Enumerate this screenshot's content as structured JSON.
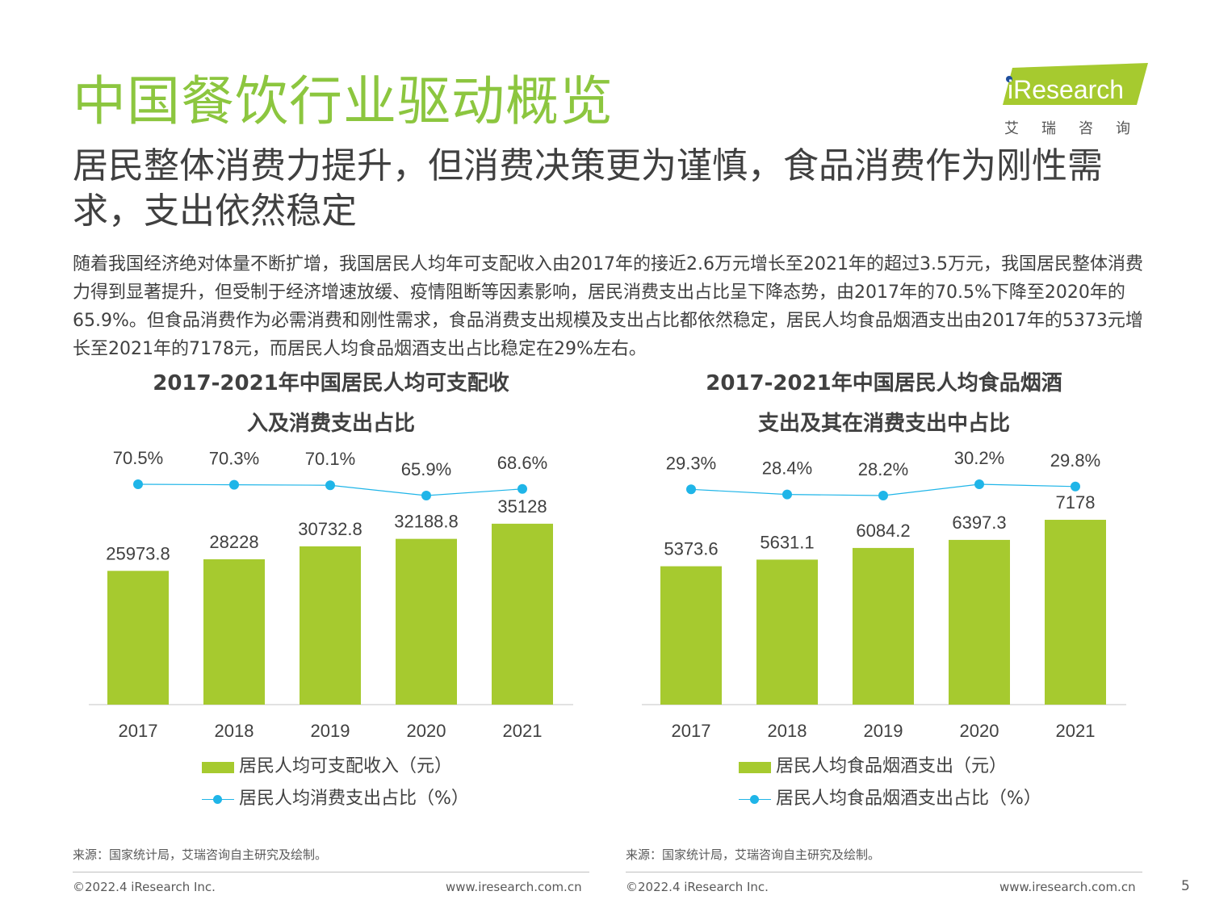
{
  "header": {
    "title": "中国餐饮行业驱动概览",
    "logo_text": "iResearch",
    "logo_subtitle": "艾瑞咨询"
  },
  "subtitle": "居民整体消费力提升，但消费决策更为谨慎，食品消费作为刚性需求，支出依然稳定",
  "intro": "随着我国经济绝对体量不断扩增，我国居民人均年可支配收入由2017年的接近2.6万元增长至2021年的超过3.5万元，我国居民整体消费力得到显著提升，但受制于经济增速放缓、疫情阻断等因素影响，居民消费支出占比呈下降态势，由2017年的70.5%下降至2020年的65.9%。但食品消费作为必需消费和刚性需求，食品消费支出规模及支出占比都依然稳定，居民人均食品烟酒支出由2017年的5373元增长至2021年的7178元，而居民人均食品烟酒支出占比稳定在29%左右。",
  "colors": {
    "title": "#8cc63f",
    "bar": "#a6ca2f",
    "line": "#1fb5e8",
    "text": "#404040"
  },
  "chart_data": [
    {
      "type": "bar+line",
      "title": "2017-2021年中国居民人均可支配收入及消费支出占比",
      "categories": [
        "2017",
        "2018",
        "2019",
        "2020",
        "2021"
      ],
      "series": [
        {
          "name": "居民人均可支配收入（元）",
          "type": "bar",
          "values": [
            25973.8,
            28228,
            30732.8,
            32188.8,
            35128
          ],
          "labels": [
            "25973.8",
            "28228",
            "30732.8",
            "32188.8",
            "35128"
          ]
        },
        {
          "name": "居民人均消费支出占比（%）",
          "type": "line",
          "values": [
            70.5,
            70.3,
            70.1,
            65.9,
            68.6
          ],
          "labels": [
            "70.5%",
            "70.3%",
            "70.1%",
            "65.9%",
            "68.6%"
          ]
        }
      ],
      "bar_ylim": [
        0,
        40000
      ],
      "line_ylim": [
        0,
        80
      ],
      "legend": "bottom",
      "grid": false
    },
    {
      "type": "bar+line",
      "title": "2017-2021年中国居民人均食品烟酒支出及其在消费支出中占比",
      "categories": [
        "2017",
        "2018",
        "2019",
        "2020",
        "2021"
      ],
      "series": [
        {
          "name": "居民人均食品烟酒支出（元）",
          "type": "bar",
          "values": [
            5373.6,
            5631.1,
            6084.2,
            6397.3,
            7178
          ],
          "labels": [
            "5373.6",
            "5631.1",
            "6084.2",
            "6397.3",
            "7178"
          ]
        },
        {
          "name": "居民人均食品烟酒支出占比（%）",
          "type": "line",
          "values": [
            29.3,
            28.4,
            28.2,
            30.2,
            29.8
          ],
          "labels": [
            "29.3%",
            "28.4%",
            "28.2%",
            "30.2%",
            "29.8%"
          ]
        }
      ],
      "bar_ylim": [
        0,
        8000
      ],
      "line_ylim": [
        0,
        32
      ],
      "legend": "bottom",
      "grid": false
    }
  ],
  "charts": [
    {
      "title_line1": "2017-2021年中国居民人均可支配收",
      "title_line2": "入及消费支出占比"
    },
    {
      "title_line1": "2017-2021年中国居民人均食品烟酒",
      "title_line2": "支出及其在消费支出中占比"
    }
  ],
  "footer": {
    "source": "来源：国家统计局，艾瑞咨询自主研究及绘制。",
    "copyright": "©2022.4 iResearch Inc.",
    "url": "www.iresearch.com.cn",
    "page": "5"
  }
}
